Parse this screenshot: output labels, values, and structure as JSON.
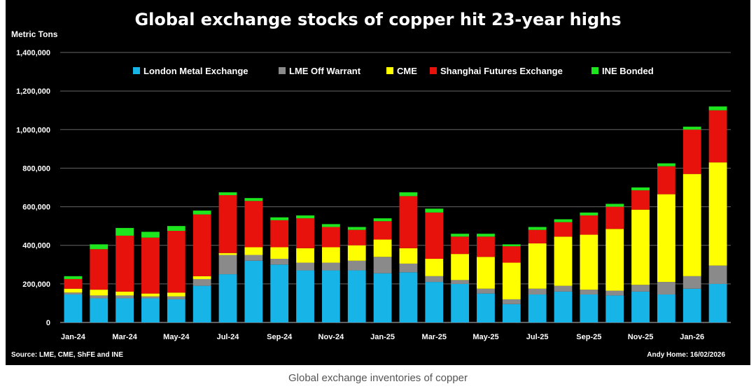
{
  "chart_data": {
    "type": "bar",
    "stacked": true,
    "title": "Global exchange stocks of copper hit 23-year highs",
    "ylabel": "Metric Tons",
    "ylim": [
      0,
      1400000
    ],
    "yticks": [
      "0",
      "200,000",
      "400,000",
      "600,000",
      "800,000",
      "1,000,000",
      "1,200,000",
      "1,400,000"
    ],
    "ytick_values": [
      0,
      200000,
      400000,
      600000,
      800000,
      1000000,
      1200000,
      1400000
    ],
    "grid": true,
    "legend_position": "top",
    "categories": [
      "Jan-24",
      "Feb-24",
      "Mar-24",
      "Apr-24",
      "May-24",
      "Jun-24",
      "Jul-24",
      "Aug-24",
      "Sep-24",
      "Oct-24",
      "Nov-24",
      "Dec-24",
      "Jan-25",
      "Feb-25",
      "Mar-25",
      "Apr-25",
      "May-25",
      "Jun-25",
      "Jul-25",
      "Aug-25",
      "Sep-25",
      "Oct-25",
      "Nov-25",
      "Dec-25",
      "Jan-26",
      "Feb-26"
    ],
    "xtick_labels": [
      "Jan-24",
      "Mar-24",
      "May-24",
      "Jul-24",
      "Sep-24",
      "Nov-24",
      "Jan-25",
      "Mar-25",
      "May-25",
      "Jul-25",
      "Sep-25",
      "Nov-25",
      "Jan-26"
    ],
    "series": [
      {
        "name": "London Metal Exchange",
        "color": "#17b4e8",
        "values": [
          145000,
          125000,
          125000,
          125000,
          120000,
          190000,
          250000,
          320000,
          300000,
          270000,
          270000,
          270000,
          255000,
          260000,
          210000,
          200000,
          150000,
          95000,
          145000,
          160000,
          145000,
          140000,
          160000,
          145000,
          175000,
          200000
        ]
      },
      {
        "name": "LME Off Warrant",
        "color": "#8a8a8a",
        "values": [
          10000,
          15000,
          15000,
          10000,
          15000,
          35000,
          100000,
          30000,
          30000,
          40000,
          40000,
          50000,
          85000,
          45000,
          30000,
          20000,
          25000,
          25000,
          30000,
          30000,
          25000,
          25000,
          35000,
          65000,
          65000,
          95000
        ]
      },
      {
        "name": "CME",
        "color": "#ffff00",
        "values": [
          20000,
          30000,
          20000,
          15000,
          20000,
          15000,
          10000,
          40000,
          60000,
          75000,
          80000,
          80000,
          90000,
          80000,
          90000,
          135000,
          165000,
          190000,
          235000,
          255000,
          285000,
          320000,
          390000,
          455000,
          530000,
          535000
        ]
      },
      {
        "name": "Shanghai Futures Exchange",
        "color": "#e8120c",
        "values": [
          50000,
          210000,
          290000,
          290000,
          320000,
          320000,
          300000,
          240000,
          140000,
          155000,
          105000,
          80000,
          95000,
          270000,
          240000,
          90000,
          105000,
          85000,
          70000,
          75000,
          100000,
          115000,
          100000,
          145000,
          230000,
          270000
        ]
      },
      {
        "name": "INE Bonded",
        "color": "#1ee61e",
        "values": [
          15000,
          25000,
          40000,
          30000,
          25000,
          20000,
          15000,
          15000,
          15000,
          15000,
          15000,
          15000,
          15000,
          20000,
          20000,
          15000,
          15000,
          10000,
          15000,
          15000,
          15000,
          15000,
          15000,
          15000,
          15000,
          20000
        ]
      }
    ]
  },
  "source": "Source: LME, CME, ShFE and INE",
  "credit": "Andy Home: 16/02/2026",
  "caption": "Global exchange inventories of copper"
}
